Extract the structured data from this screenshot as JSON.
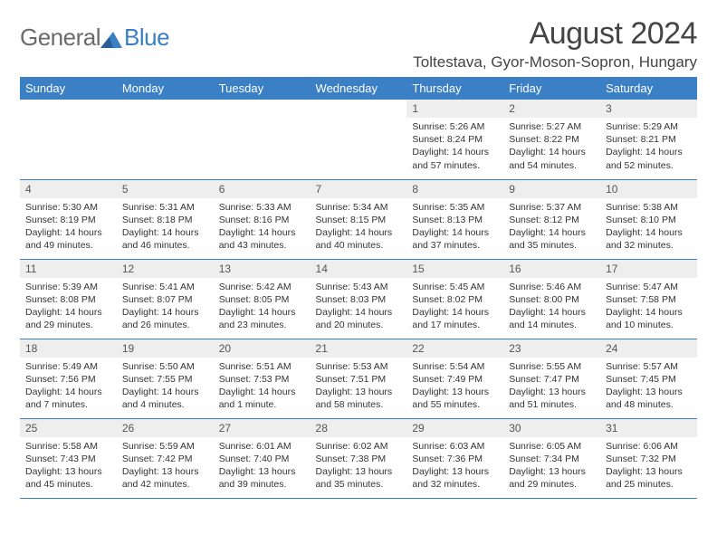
{
  "logo": {
    "general": "General",
    "blue": "Blue"
  },
  "title": "August 2024",
  "location": "Toltestava, Gyor-Moson-Sopron, Hungary",
  "colors": {
    "header_bg": "#3b7fc4",
    "header_fg": "#ffffff",
    "daynum_bg": "#eeeeee",
    "row_divider": "#3b7fc4",
    "logo_gray": "#6b6b6b",
    "logo_blue": "#3b7fc4"
  },
  "typography": {
    "title_size_pt": 26,
    "location_size_pt": 13,
    "header_size_pt": 10,
    "body_size_pt": 8
  },
  "weekdays": [
    "Sunday",
    "Monday",
    "Tuesday",
    "Wednesday",
    "Thursday",
    "Friday",
    "Saturday"
  ],
  "weeks": [
    [
      null,
      null,
      null,
      null,
      {
        "n": "1",
        "sr": "Sunrise: 5:26 AM",
        "ss": "Sunset: 8:24 PM",
        "dl": "Daylight: 14 hours and 57 minutes."
      },
      {
        "n": "2",
        "sr": "Sunrise: 5:27 AM",
        "ss": "Sunset: 8:22 PM",
        "dl": "Daylight: 14 hours and 54 minutes."
      },
      {
        "n": "3",
        "sr": "Sunrise: 5:29 AM",
        "ss": "Sunset: 8:21 PM",
        "dl": "Daylight: 14 hours and 52 minutes."
      }
    ],
    [
      {
        "n": "4",
        "sr": "Sunrise: 5:30 AM",
        "ss": "Sunset: 8:19 PM",
        "dl": "Daylight: 14 hours and 49 minutes."
      },
      {
        "n": "5",
        "sr": "Sunrise: 5:31 AM",
        "ss": "Sunset: 8:18 PM",
        "dl": "Daylight: 14 hours and 46 minutes."
      },
      {
        "n": "6",
        "sr": "Sunrise: 5:33 AM",
        "ss": "Sunset: 8:16 PM",
        "dl": "Daylight: 14 hours and 43 minutes."
      },
      {
        "n": "7",
        "sr": "Sunrise: 5:34 AM",
        "ss": "Sunset: 8:15 PM",
        "dl": "Daylight: 14 hours and 40 minutes."
      },
      {
        "n": "8",
        "sr": "Sunrise: 5:35 AM",
        "ss": "Sunset: 8:13 PM",
        "dl": "Daylight: 14 hours and 37 minutes."
      },
      {
        "n": "9",
        "sr": "Sunrise: 5:37 AM",
        "ss": "Sunset: 8:12 PM",
        "dl": "Daylight: 14 hours and 35 minutes."
      },
      {
        "n": "10",
        "sr": "Sunrise: 5:38 AM",
        "ss": "Sunset: 8:10 PM",
        "dl": "Daylight: 14 hours and 32 minutes."
      }
    ],
    [
      {
        "n": "11",
        "sr": "Sunrise: 5:39 AM",
        "ss": "Sunset: 8:08 PM",
        "dl": "Daylight: 14 hours and 29 minutes."
      },
      {
        "n": "12",
        "sr": "Sunrise: 5:41 AM",
        "ss": "Sunset: 8:07 PM",
        "dl": "Daylight: 14 hours and 26 minutes."
      },
      {
        "n": "13",
        "sr": "Sunrise: 5:42 AM",
        "ss": "Sunset: 8:05 PM",
        "dl": "Daylight: 14 hours and 23 minutes."
      },
      {
        "n": "14",
        "sr": "Sunrise: 5:43 AM",
        "ss": "Sunset: 8:03 PM",
        "dl": "Daylight: 14 hours and 20 minutes."
      },
      {
        "n": "15",
        "sr": "Sunrise: 5:45 AM",
        "ss": "Sunset: 8:02 PM",
        "dl": "Daylight: 14 hours and 17 minutes."
      },
      {
        "n": "16",
        "sr": "Sunrise: 5:46 AM",
        "ss": "Sunset: 8:00 PM",
        "dl": "Daylight: 14 hours and 14 minutes."
      },
      {
        "n": "17",
        "sr": "Sunrise: 5:47 AM",
        "ss": "Sunset: 7:58 PM",
        "dl": "Daylight: 14 hours and 10 minutes."
      }
    ],
    [
      {
        "n": "18",
        "sr": "Sunrise: 5:49 AM",
        "ss": "Sunset: 7:56 PM",
        "dl": "Daylight: 14 hours and 7 minutes."
      },
      {
        "n": "19",
        "sr": "Sunrise: 5:50 AM",
        "ss": "Sunset: 7:55 PM",
        "dl": "Daylight: 14 hours and 4 minutes."
      },
      {
        "n": "20",
        "sr": "Sunrise: 5:51 AM",
        "ss": "Sunset: 7:53 PM",
        "dl": "Daylight: 14 hours and 1 minute."
      },
      {
        "n": "21",
        "sr": "Sunrise: 5:53 AM",
        "ss": "Sunset: 7:51 PM",
        "dl": "Daylight: 13 hours and 58 minutes."
      },
      {
        "n": "22",
        "sr": "Sunrise: 5:54 AM",
        "ss": "Sunset: 7:49 PM",
        "dl": "Daylight: 13 hours and 55 minutes."
      },
      {
        "n": "23",
        "sr": "Sunrise: 5:55 AM",
        "ss": "Sunset: 7:47 PM",
        "dl": "Daylight: 13 hours and 51 minutes."
      },
      {
        "n": "24",
        "sr": "Sunrise: 5:57 AM",
        "ss": "Sunset: 7:45 PM",
        "dl": "Daylight: 13 hours and 48 minutes."
      }
    ],
    [
      {
        "n": "25",
        "sr": "Sunrise: 5:58 AM",
        "ss": "Sunset: 7:43 PM",
        "dl": "Daylight: 13 hours and 45 minutes."
      },
      {
        "n": "26",
        "sr": "Sunrise: 5:59 AM",
        "ss": "Sunset: 7:42 PM",
        "dl": "Daylight: 13 hours and 42 minutes."
      },
      {
        "n": "27",
        "sr": "Sunrise: 6:01 AM",
        "ss": "Sunset: 7:40 PM",
        "dl": "Daylight: 13 hours and 39 minutes."
      },
      {
        "n": "28",
        "sr": "Sunrise: 6:02 AM",
        "ss": "Sunset: 7:38 PM",
        "dl": "Daylight: 13 hours and 35 minutes."
      },
      {
        "n": "29",
        "sr": "Sunrise: 6:03 AM",
        "ss": "Sunset: 7:36 PM",
        "dl": "Daylight: 13 hours and 32 minutes."
      },
      {
        "n": "30",
        "sr": "Sunrise: 6:05 AM",
        "ss": "Sunset: 7:34 PM",
        "dl": "Daylight: 13 hours and 29 minutes."
      },
      {
        "n": "31",
        "sr": "Sunrise: 6:06 AM",
        "ss": "Sunset: 7:32 PM",
        "dl": "Daylight: 13 hours and 25 minutes."
      }
    ]
  ]
}
